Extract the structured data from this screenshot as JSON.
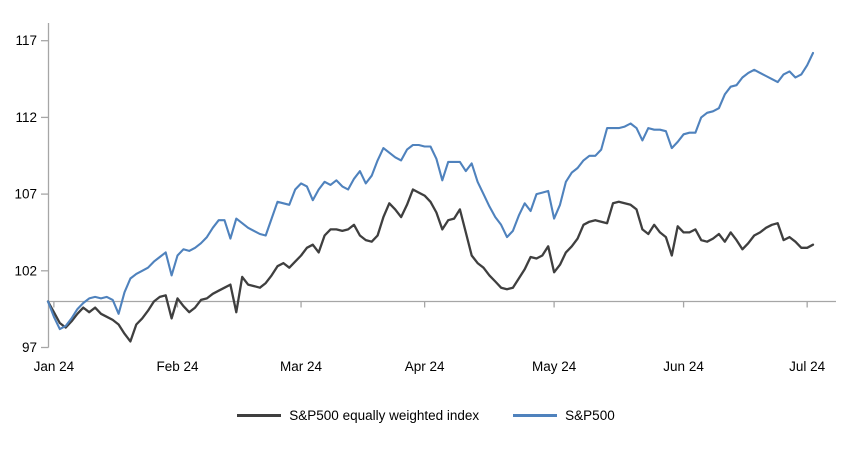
{
  "chart_data": {
    "type": "line",
    "title": "",
    "legend_position": "bottom",
    "grid": false,
    "axis_color": "#a6a6a6",
    "text_color": "#000000",
    "x_axis": {
      "labels": [
        "Jan 24",
        "Feb 24",
        "Mar 24",
        "Apr 24",
        "May 24",
        "Jun 24",
        "Jul 24"
      ],
      "baseline_value": 100
    },
    "y_axis": {
      "ticks": [
        97,
        102,
        107,
        112,
        117
      ],
      "range": [
        97,
        117.8
      ]
    },
    "series": [
      {
        "name": "S&P500 equally weighted index",
        "color": "#3f3f3f",
        "values": [
          100.0,
          99.3,
          98.6,
          98.3,
          98.7,
          99.2,
          99.6,
          99.3,
          99.6,
          99.2,
          99.0,
          98.8,
          98.5,
          97.9,
          97.4,
          98.5,
          98.9,
          99.4,
          100.0,
          100.3,
          100.4,
          98.9,
          100.2,
          99.7,
          99.3,
          99.6,
          100.1,
          100.2,
          100.5,
          100.7,
          100.9,
          101.1,
          99.3,
          101.6,
          101.1,
          101.0,
          100.9,
          101.2,
          101.7,
          102.3,
          102.5,
          102.2,
          102.6,
          103.0,
          103.5,
          103.7,
          103.2,
          104.3,
          104.7,
          104.7,
          104.6,
          104.7,
          105.0,
          104.3,
          104.0,
          103.9,
          104.3,
          105.5,
          106.4,
          106.0,
          105.5,
          106.3,
          107.3,
          107.1,
          106.9,
          106.5,
          105.8,
          104.7,
          105.3,
          105.4,
          106.0,
          104.5,
          103.0,
          102.5,
          102.2,
          101.7,
          101.3,
          100.9,
          100.8,
          100.9,
          101.5,
          102.1,
          102.9,
          102.8,
          103.0,
          103.6,
          101.9,
          102.4,
          103.2,
          103.6,
          104.1,
          105.0,
          105.2,
          105.3,
          105.2,
          105.1,
          106.4,
          106.5,
          106.4,
          106.3,
          106.0,
          104.7,
          104.4,
          105.0,
          104.5,
          104.2,
          103.0,
          104.9,
          104.5,
          104.5,
          104.7,
          104.0,
          103.9,
          104.1,
          104.4,
          103.9,
          104.5,
          104.0,
          103.4,
          103.8,
          104.3,
          104.5,
          104.8,
          105.0,
          105.1,
          104.0,
          104.2,
          103.9,
          103.5,
          103.5,
          103.7
        ]
      },
      {
        "name": "S&P500",
        "color": "#4f82bd",
        "values": [
          100.0,
          99.0,
          98.2,
          98.4,
          98.9,
          99.5,
          99.9,
          100.2,
          100.3,
          100.2,
          100.3,
          100.1,
          99.2,
          100.6,
          101.5,
          101.8,
          102.0,
          102.2,
          102.6,
          102.9,
          103.2,
          101.7,
          103.0,
          103.4,
          103.3,
          103.5,
          103.8,
          104.2,
          104.8,
          105.3,
          105.3,
          104.1,
          105.4,
          105.1,
          104.8,
          104.6,
          104.4,
          104.3,
          105.4,
          106.5,
          106.4,
          106.3,
          107.3,
          107.7,
          107.5,
          106.6,
          107.3,
          107.8,
          107.6,
          107.9,
          107.5,
          107.3,
          108.0,
          108.5,
          107.7,
          108.2,
          109.2,
          110.0,
          109.7,
          109.4,
          109.2,
          109.9,
          110.2,
          110.2,
          110.1,
          110.1,
          109.3,
          107.9,
          109.1,
          109.1,
          109.1,
          108.5,
          109.0,
          107.8,
          107.0,
          106.2,
          105.5,
          105.0,
          104.2,
          104.6,
          105.6,
          106.4,
          105.9,
          107.0,
          107.1,
          107.2,
          105.4,
          106.3,
          107.8,
          108.4,
          108.7,
          109.2,
          109.5,
          109.5,
          109.9,
          111.3,
          111.3,
          111.3,
          111.4,
          111.6,
          111.3,
          110.5,
          111.3,
          111.2,
          111.2,
          111.1,
          110.0,
          110.4,
          110.9,
          111.0,
          111.0,
          112.0,
          112.3,
          112.4,
          112.6,
          113.5,
          114.0,
          114.1,
          114.6,
          114.9,
          115.1,
          114.9,
          114.7,
          114.5,
          114.3,
          114.8,
          115.0,
          114.6,
          114.8,
          115.4,
          116.2
        ]
      }
    ]
  }
}
